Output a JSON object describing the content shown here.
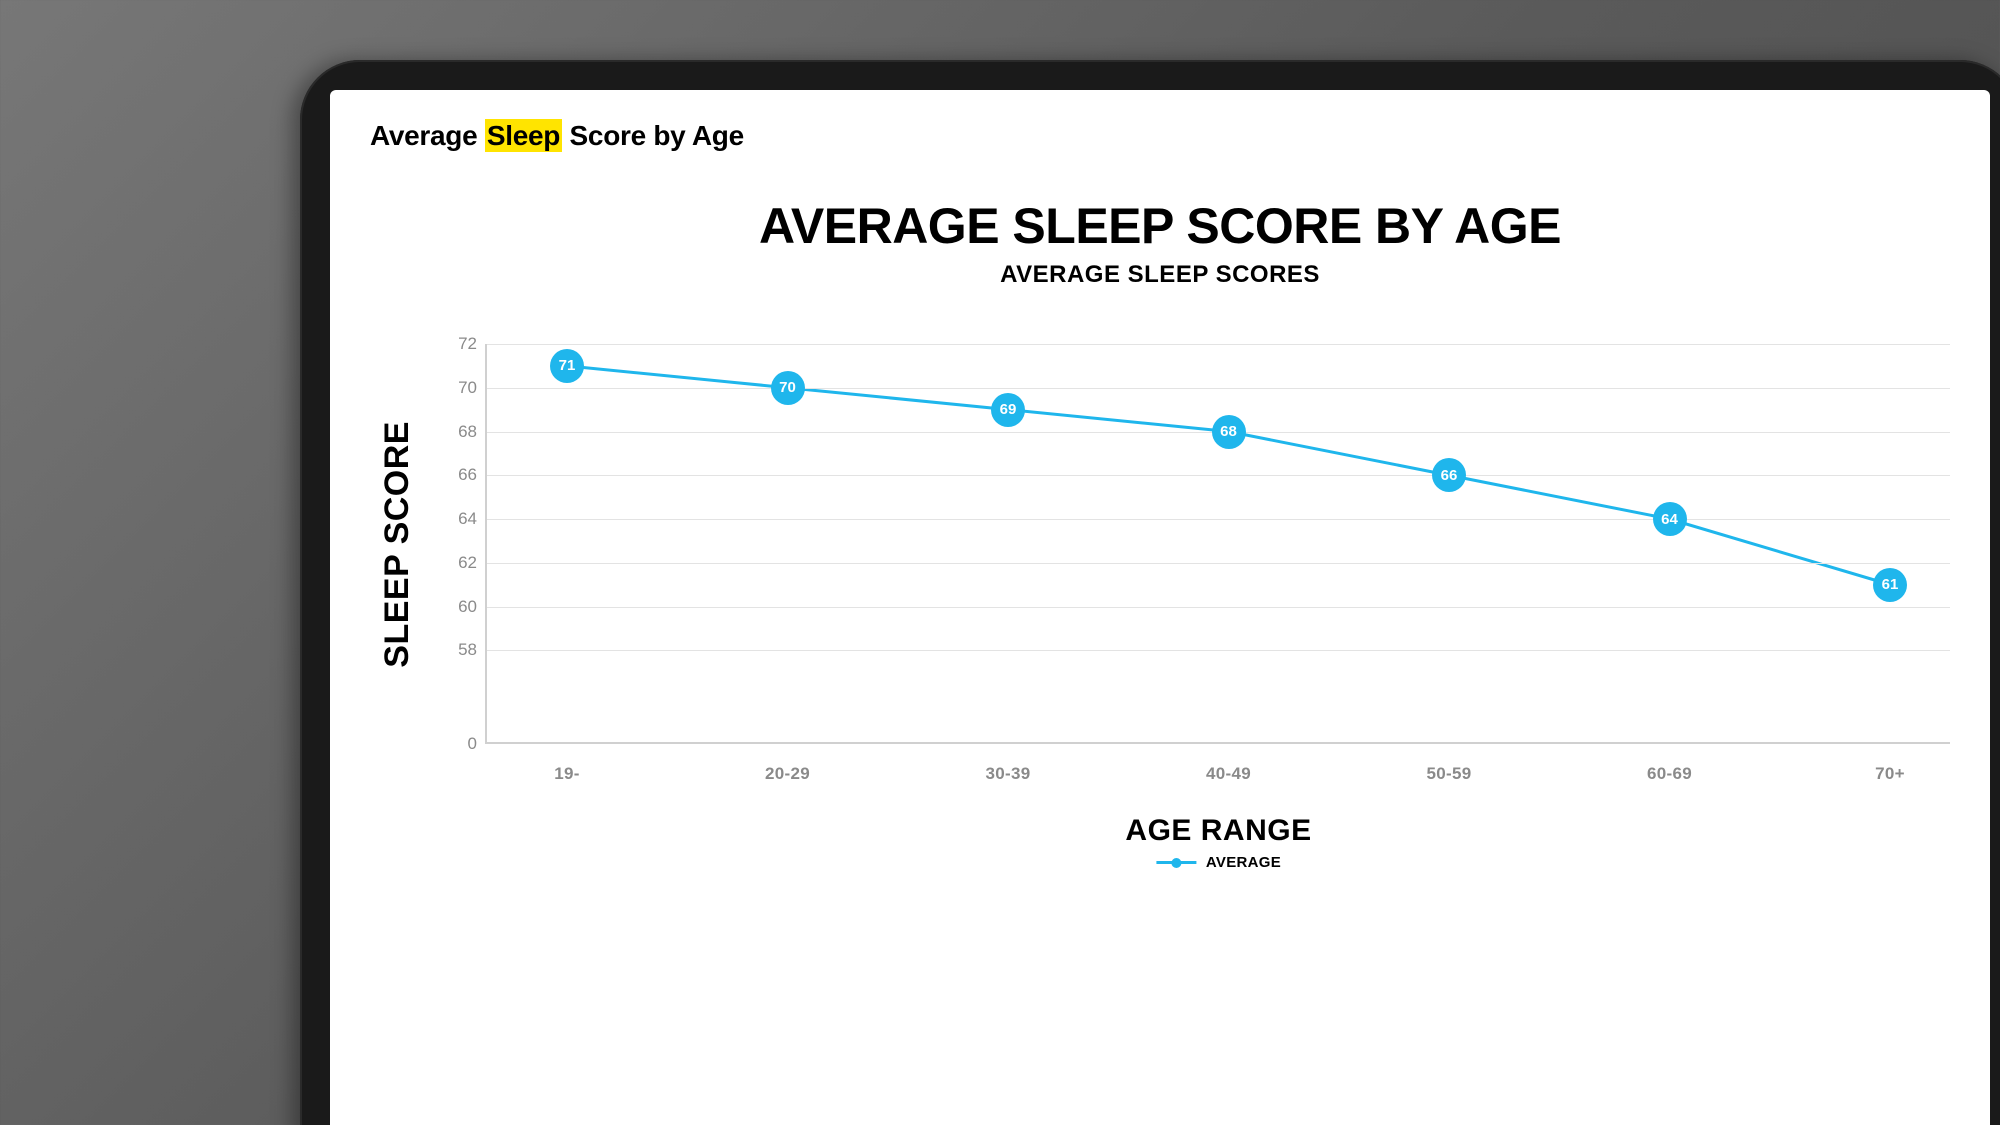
{
  "page_title": {
    "pre": "Average ",
    "highlight": "Sleep",
    "post": " Score by Age"
  },
  "chart": {
    "type": "line",
    "title": "AVERAGE SLEEP SCORE BY AGE",
    "subtitle": "AVERAGE SLEEP SCORES",
    "x_axis": {
      "title": "AGE RANGE",
      "categories": [
        "19-",
        "20-29",
        "30-39",
        "40-49",
        "50-59",
        "60-69",
        "70+"
      ]
    },
    "y_axis": {
      "title": "SLEEP SCORE",
      "ticks": [
        0,
        58,
        60,
        62,
        64,
        66,
        68,
        70,
        72
      ],
      "break_between": [
        0,
        58
      ],
      "min": 56,
      "max": 72,
      "zero_at_bottom": true
    },
    "series": [
      {
        "name": "AVERAGE",
        "color": "#1fb6ec",
        "values": [
          71,
          70,
          69,
          68,
          66,
          64,
          61
        ],
        "marker_radius": 17,
        "line_width": 3,
        "label_color": "#ffffff",
        "label_fontsize": 15
      }
    ],
    "grid_color": "#e3e3e3",
    "axis_color": "#d0d0d0",
    "tick_color": "#8a8a8a",
    "tick_fontsize": 17,
    "title_fontsize": 50,
    "subtitle_fontsize": 24,
    "axis_title_fontsize": 32,
    "background_color": "#ffffff"
  },
  "device": {
    "frame_color": "#1a1a1a",
    "page_background": "linear-gradient(135deg, #777777, #4a4a4a)"
  }
}
